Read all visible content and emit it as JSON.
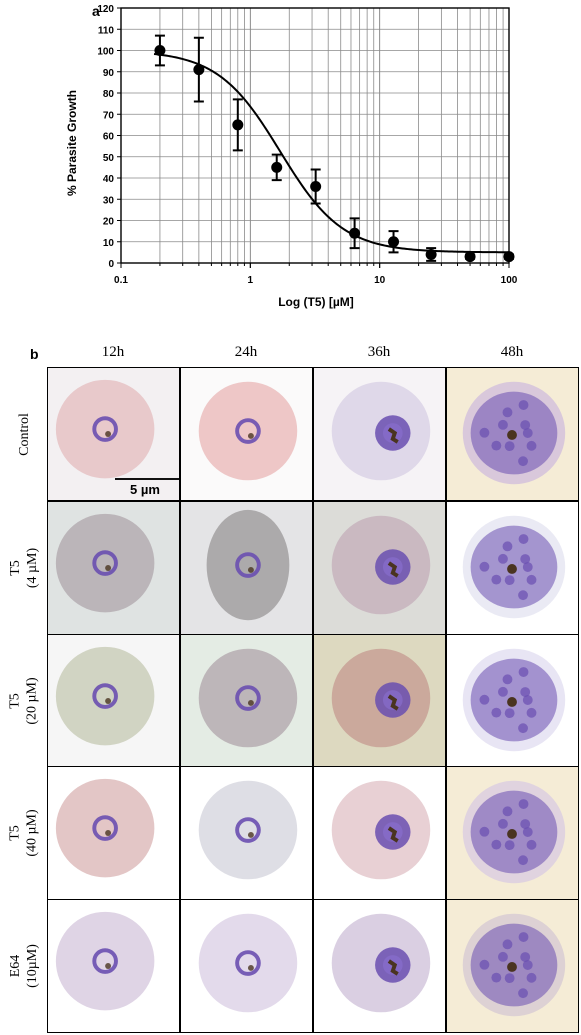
{
  "panel_a": {
    "letter": "a",
    "chart_data": {
      "type": "scatter",
      "x": [
        0.2,
        0.4,
        0.8,
        1.6,
        3.2,
        6.4,
        12.8,
        25,
        50,
        100
      ],
      "y": [
        100,
        91,
        65,
        45,
        36,
        14,
        10,
        4,
        3,
        3
      ],
      "y_error": [
        7,
        15,
        12,
        6,
        8,
        7,
        5,
        3,
        1,
        1
      ],
      "fit_curve": {
        "top": 100,
        "bottom": 5,
        "ic50": 1.7,
        "hill": 1.8
      },
      "xlabel": "Log (T5) [µM]",
      "ylabel": "% Parasite Growth",
      "x_scale": "log",
      "xlim": [
        0.1,
        100
      ],
      "ylim": [
        0,
        120
      ],
      "x_ticks": [
        "0.1",
        "1",
        "10",
        "100"
      ],
      "y_ticks": [
        "0",
        "10",
        "20",
        "30",
        "40",
        "50",
        "60",
        "70",
        "80",
        "90",
        "100",
        "110",
        "120"
      ],
      "grid": true
    }
  },
  "panel_b": {
    "letter": "b",
    "columns": [
      "12h",
      "24h",
      "36h",
      "48h"
    ],
    "rows": [
      {
        "line1": "Control",
        "line2": ""
      },
      {
        "line1": "T5",
        "line2": "(4 µM)"
      },
      {
        "line1": "T5",
        "line2": "(20 µM)"
      },
      {
        "line1": "T5",
        "line2": "(40 µM)"
      },
      {
        "line1": "E64",
        "line2": "(10µM)"
      }
    ],
    "scale_bar_label": "5 µm",
    "colors": {
      "rbc": "#e9c2c2",
      "parasite": "#6a4fb0",
      "pigment": "#4a3420",
      "bg_light": "#f3f0f2",
      "bg_cream": "#f5ecd6"
    }
  }
}
